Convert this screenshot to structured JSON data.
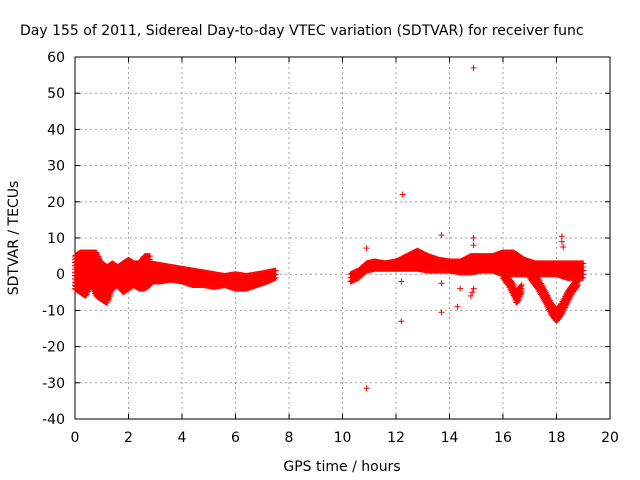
{
  "chart_data": {
    "type": "scatter",
    "title": "Day 155 of 2011, Sidereal Day-to-day VTEC variation (SDTVAR) for receiver func",
    "xlabel": "GPS time / hours",
    "ylabel": "SDTVAR / TECUs",
    "xlim": [
      0,
      20
    ],
    "ylim": [
      -40,
      60
    ],
    "xticks": [
      0,
      2,
      4,
      6,
      8,
      10,
      12,
      14,
      16,
      18,
      20
    ],
    "yticks": [
      -40,
      -30,
      -20,
      -10,
      0,
      10,
      20,
      30,
      40,
      50,
      60
    ],
    "grid": true,
    "marker": "+",
    "color": "#ff0000",
    "bands": [
      {
        "x": [
          0.0,
          0.2,
          0.4,
          0.6,
          0.8,
          1.0,
          1.2,
          1.4,
          1.6,
          1.8,
          2.0,
          2.2,
          2.4,
          2.6,
          2.8
        ],
        "lo": [
          -4,
          -5,
          -6,
          -3,
          -6,
          -7,
          -8,
          -4,
          -3,
          -5,
          -4,
          -3,
          -4,
          -4,
          -3
        ],
        "hi": [
          5,
          6,
          6,
          6,
          6,
          3,
          2,
          3,
          2,
          3,
          4,
          3,
          3,
          5,
          5
        ]
      },
      {
        "x": [
          2.8,
          3.2,
          3.6,
          4.0,
          4.4,
          4.8,
          5.2,
          5.6,
          6.0,
          6.4,
          6.8,
          7.2,
          7.5
        ],
        "lo": [
          -2,
          -2,
          -1.5,
          -2,
          -3,
          -3,
          -3.5,
          -3,
          -4,
          -4,
          -3,
          -2,
          -1
        ],
        "hi": [
          3,
          2.5,
          2,
          1.5,
          1,
          0.5,
          0,
          -0.5,
          0,
          -0.5,
          0,
          0.5,
          1
        ]
      },
      {
        "x": [
          10.3,
          10.6,
          10.9,
          11.2,
          11.6,
          12.0,
          12.4,
          12.8,
          13.2,
          13.6,
          14.0,
          14.4,
          14.8,
          15.2,
          15.6,
          16.0,
          16.4,
          16.8,
          17.2,
          17.6,
          18.0,
          18.4,
          18.8,
          19.0
        ],
        "lo": [
          -2,
          -1,
          1,
          1.5,
          1.5,
          1.5,
          1.5,
          1.5,
          1,
          1,
          1,
          0.5,
          0.5,
          1,
          1,
          0,
          0,
          0,
          0,
          0,
          0,
          -1,
          -1,
          -1
        ],
        "hi": [
          0,
          1,
          3,
          3.5,
          3,
          3.5,
          5,
          6.5,
          5,
          4,
          3.5,
          3.5,
          5,
          5,
          5,
          6,
          6,
          4,
          3,
          3,
          3,
          3,
          3,
          3
        ]
      },
      {
        "x": [
          16.0,
          16.2,
          16.4,
          16.5,
          16.6,
          16.7
        ],
        "lo": [
          -1,
          -3,
          -6,
          -8,
          -7,
          -5
        ],
        "hi": [
          0.5,
          -1,
          -3,
          -5,
          -4,
          -3
        ]
      },
      {
        "x": [
          17.0,
          17.3,
          17.6,
          17.8,
          18.0,
          18.2,
          18.4,
          18.6,
          18.8
        ],
        "lo": [
          -1,
          -4,
          -8,
          -11,
          -13,
          -11,
          -8,
          -5,
          -3
        ],
        "hi": [
          1,
          -1,
          -5,
          -8,
          -10,
          -8,
          -5,
          -3,
          -1
        ]
      }
    ],
    "outliers": [
      {
        "x": 10.9,
        "y": -31.5
      },
      {
        "x": 10.9,
        "y": 7.2
      },
      {
        "x": 12.25,
        "y": 22
      },
      {
        "x": 12.2,
        "y": -2
      },
      {
        "x": 12.2,
        "y": -13
      },
      {
        "x": 13.7,
        "y": 10.8
      },
      {
        "x": 13.7,
        "y": -10.5
      },
      {
        "x": 13.7,
        "y": -2.5
      },
      {
        "x": 14.3,
        "y": -9
      },
      {
        "x": 14.4,
        "y": -4
      },
      {
        "x": 14.9,
        "y": 57
      },
      {
        "x": 14.9,
        "y": 10
      },
      {
        "x": 14.9,
        "y": 8
      },
      {
        "x": 14.8,
        "y": -6
      },
      {
        "x": 14.85,
        "y": -5
      },
      {
        "x": 14.9,
        "y": -4
      },
      {
        "x": 18.2,
        "y": 10.5
      },
      {
        "x": 18.2,
        "y": 9
      },
      {
        "x": 18.25,
        "y": 7.5
      }
    ]
  }
}
